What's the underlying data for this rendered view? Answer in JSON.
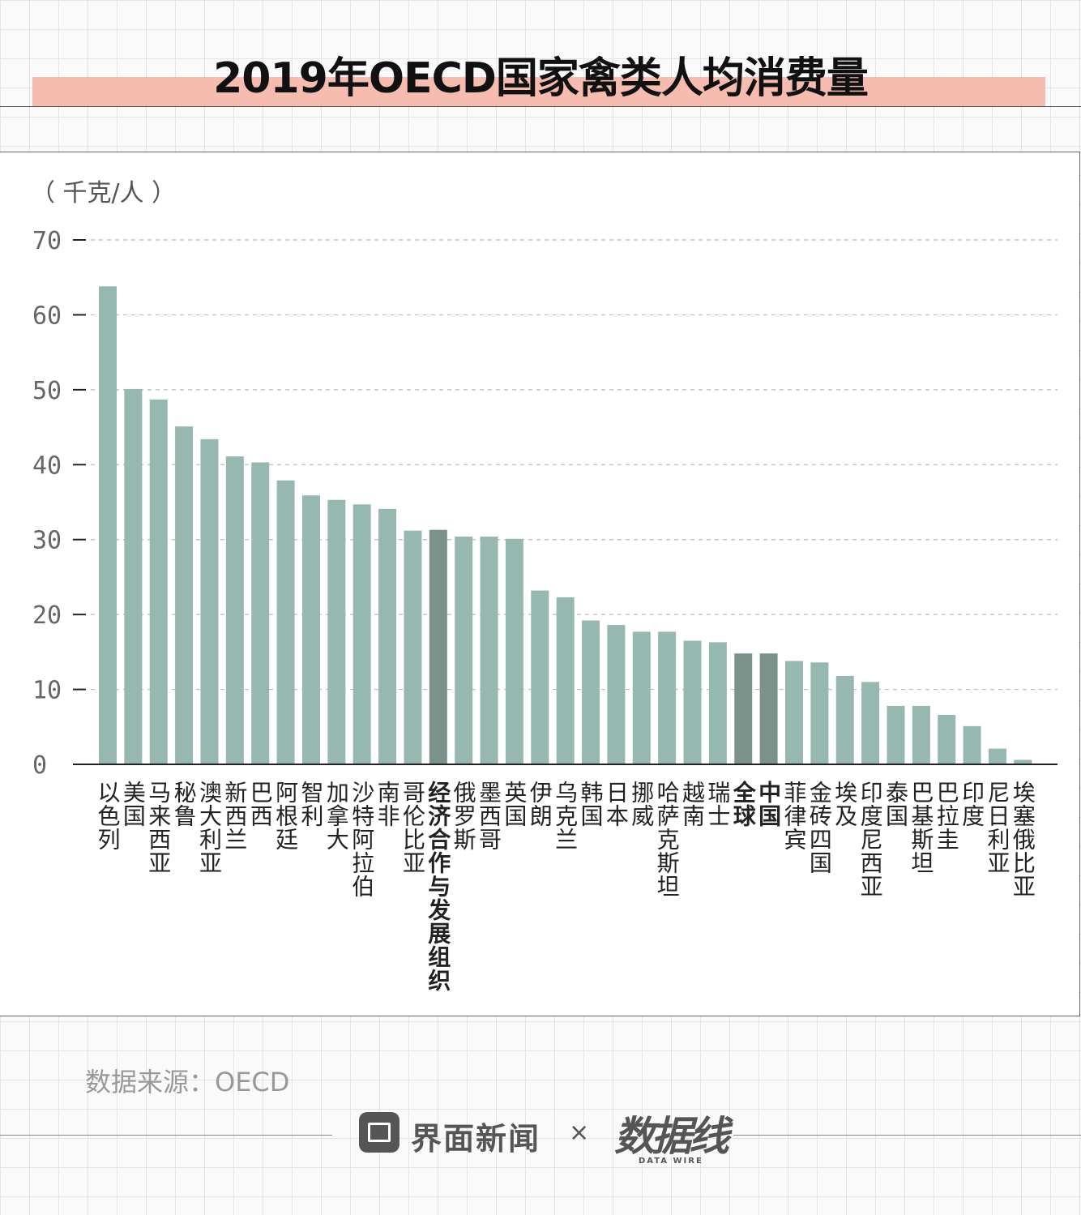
{
  "header": {
    "title": "2019年OECD国家禽类人均消费量"
  },
  "chart_data": {
    "type": "bar",
    "unit_label": "（ 千克/人 ）",
    "ylim": [
      0,
      70
    ],
    "yticks": [
      "0",
      "10",
      "20",
      "30",
      "40",
      "50",
      "60",
      "70"
    ],
    "grid": "horizontal dashed",
    "categories": [
      "以色列",
      "美国",
      "马来西亚",
      "秘鲁",
      "澳大利亚",
      "新西兰",
      "巴西",
      "阿根廷",
      "智利",
      "加拿大",
      "沙特阿拉伯",
      "南非",
      "哥伦比亚",
      "经济合作与发展组织",
      "俄罗斯",
      "墨西哥",
      "英国",
      "伊朗",
      "乌克兰",
      "韩国",
      "日本",
      "挪威",
      "哈萨克斯坦",
      "越南",
      "瑞士",
      "全球",
      "中国",
      "菲律宾",
      "金砖四国",
      "埃及",
      "印度尼西亚",
      "泰国",
      "巴基斯坦",
      "巴拉圭",
      "印度",
      "尼日利亚",
      "埃塞俄比亚"
    ],
    "values": [
      63.8,
      50.1,
      48.7,
      45.1,
      43.4,
      41.1,
      40.3,
      37.9,
      35.9,
      35.3,
      34.7,
      34.1,
      31.2,
      31.3,
      30.4,
      30.4,
      30.1,
      23.2,
      22.3,
      19.2,
      18.6,
      17.7,
      17.7,
      16.5,
      16.3,
      14.8,
      14.8,
      13.8,
      13.6,
      11.8,
      11.0,
      7.8,
      7.8,
      6.6,
      5.1,
      2.1,
      0.6
    ],
    "highlight": [
      "经济合作与发展组织",
      "全球",
      "中国"
    ],
    "colors": {
      "bar": "#97b8b0",
      "highlight": "#7b928a",
      "axis": "#222222",
      "grid": "#bbbbbb",
      "tick": "#666666"
    }
  },
  "footer": {
    "source": "数据来源：OECD",
    "brand": "界面新闻",
    "times": "×",
    "partner": "数据线",
    "partner_sub": "DATA WIRE"
  }
}
